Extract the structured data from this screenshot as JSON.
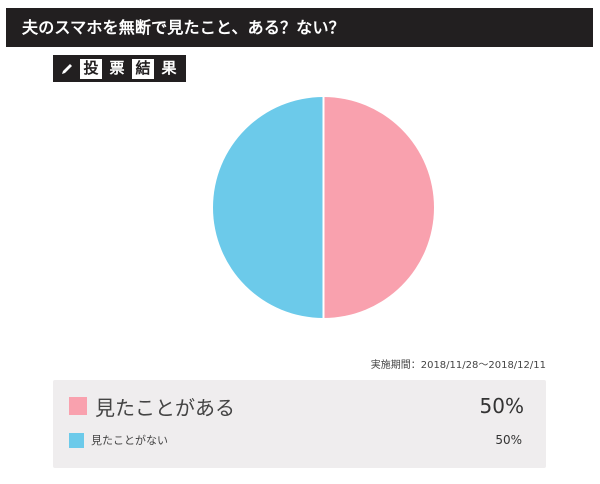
{
  "header": {
    "title": "夫のスマホを無断で見たこと、ある？ない？"
  },
  "badge": {
    "icon": "pencil-icon",
    "chars": [
      "投",
      "票",
      "結",
      "果"
    ]
  },
  "period": {
    "text": "実施期間：2018/11/28〜2018/12/11"
  },
  "legend": {
    "items": [
      {
        "label": "見たことがある",
        "percent": "50%",
        "color": "#f9a1ae"
      },
      {
        "label": "見たことがない",
        "percent": "50%",
        "color": "#6ccaea"
      }
    ]
  },
  "colors": {
    "header_bg": "#221f20",
    "legend_bg": "#efedee",
    "pink": "#f9a1ae",
    "blue": "#6ccaea"
  },
  "chart_data": {
    "type": "pie",
    "title": "夫のスマホを無断で見たこと、ある？ない？",
    "categories": [
      "見たことがある",
      "見たことがない"
    ],
    "values": [
      50,
      50
    ],
    "colors": [
      "#f9a1ae",
      "#6ccaea"
    ],
    "unit": "%",
    "legend_position": "bottom",
    "annotation": "実施期間：2018/11/28〜2018/12/11"
  }
}
